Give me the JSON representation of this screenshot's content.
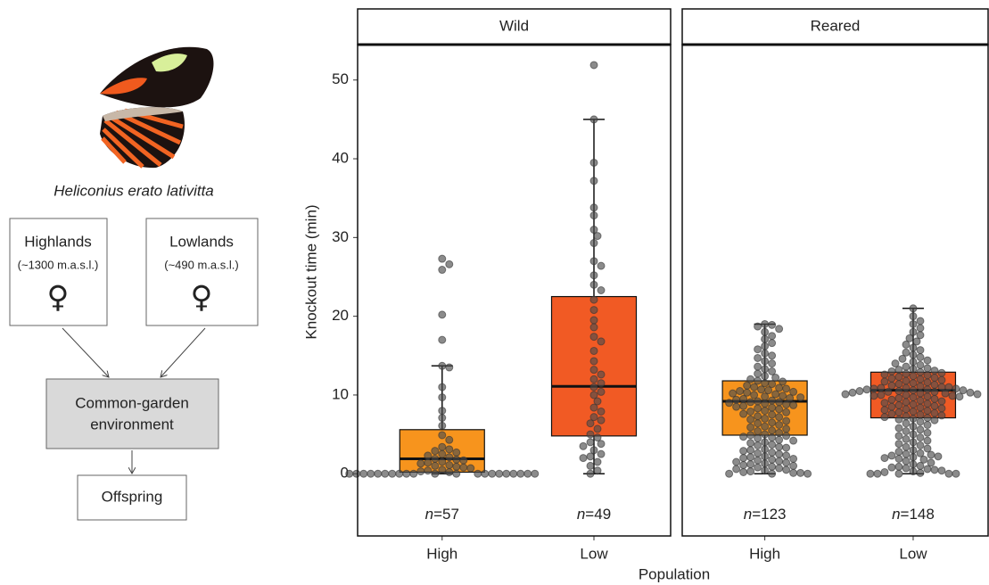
{
  "diagram": {
    "species": "Heliconius erato lativitta",
    "nodes": [
      {
        "label": "Highlands",
        "sublabel": "(~1300 m.a.s.l.)",
        "symbol": "♀"
      },
      {
        "label": "Lowlands",
        "sublabel": "(~490 m.a.s.l.)",
        "symbol": "♀"
      },
      {
        "label": "Common-garden",
        "label2": "environment"
      },
      {
        "label": "Offspring"
      }
    ]
  },
  "chart_data": {
    "type": "box",
    "y_label": "Knockout time (min)",
    "x_label": "Population",
    "ylim": [
      -7.9,
      54.5
    ],
    "yticks": [
      0,
      10,
      20,
      30,
      40,
      50
    ],
    "count_symbol": "n",
    "count_equals": "=",
    "colors": [
      "#f7941d",
      "#f15a24"
    ],
    "point_color": "#4d4d4d",
    "panels": [
      {
        "title": "Wild",
        "categories": [
          "High",
          "Low"
        ],
        "boxes": [
          {
            "min": 0,
            "q1": 0.2,
            "median": 1.9,
            "q3": 5.6,
            "max": 13.7,
            "n": 57,
            "points": [
              27.3,
              26.6,
              25.9,
              20.2,
              17.0,
              13.7,
              13.5,
              11.0,
              9.7,
              8.0,
              7.1,
              6.1,
              4.9,
              4.3,
              3.4,
              3.1,
              2.9,
              2.7,
              2.5,
              2.3,
              2.1,
              1.9,
              1.8,
              1.7,
              1.5,
              1.4,
              1.3,
              1.1,
              1.0,
              0.9,
              0.8,
              0.7,
              0.5,
              0.4,
              0.3,
              0.2,
              0,
              0,
              0,
              0,
              0,
              0,
              0,
              0,
              0,
              0,
              0,
              0,
              0,
              0,
              0,
              0,
              0,
              0,
              0,
              0,
              0
            ]
          },
          {
            "min": 0,
            "q1": 4.8,
            "median": 11.1,
            "q3": 22.5,
            "max": 45,
            "n": 49,
            "points": [
              51.9,
              45,
              39.5,
              37.2,
              33.8,
              32.8,
              31,
              30.2,
              29.3,
              27,
              26.4,
              25.2,
              24,
              23.3,
              22.1,
              20.8,
              19.5,
              18.6,
              17.4,
              16.8,
              15.6,
              14.3,
              13.2,
              12.6,
              12,
              11.5,
              11,
              10.4,
              10,
              9.2,
              8.4,
              7.9,
              7.2,
              6.8,
              6.4,
              5.7,
              5,
              4.6,
              4,
              3.8,
              3.5,
              3,
              2.5,
              2.2,
              2,
              1.5,
              1,
              0.4,
              0
            ]
          }
        ]
      },
      {
        "title": "Reared",
        "categories": [
          "High",
          "Low"
        ],
        "boxes": [
          {
            "min": 0,
            "q1": 4.9,
            "median": 9.2,
            "q3": 11.8,
            "max": 19,
            "n": 123,
            "points": [
              19.0,
              18.9,
              18.7,
              18.4,
              18.0,
              17.5,
              17.1,
              16.6,
              16.2,
              15.8,
              15.3,
              15.0,
              14.7,
              14.3,
              14.0,
              13.6,
              13.3,
              13.0,
              12.7,
              12.4,
              12.2,
              12.0,
              11.8,
              11.7,
              11.5,
              11.4,
              11.2,
              11.0,
              10.9,
              10.8,
              10.7,
              10.6,
              10.5,
              10.4,
              10.3,
              10.2,
              10.1,
              10.0,
              9.9,
              9.8,
              9.7,
              9.6,
              9.5,
              9.4,
              9.3,
              9.2,
              9.1,
              9.1,
              9.0,
              8.9,
              8.8,
              8.7,
              8.6,
              8.5,
              8.4,
              8.3,
              8.2,
              8.0,
              7.9,
              7.8,
              7.6,
              7.5,
              7.3,
              7.2,
              7.0,
              6.9,
              6.7,
              6.5,
              6.4,
              6.2,
              6.0,
              5.9,
              5.7,
              5.5,
              5.4,
              5.2,
              5.0,
              4.9,
              4.8,
              4.7,
              4.6,
              4.5,
              4.3,
              4.2,
              4.0,
              3.9,
              3.7,
              3.6,
              3.4,
              3.3,
              3.1,
              3.0,
              2.9,
              2.7,
              2.6,
              2.5,
              2.3,
              2.2,
              2.1,
              2.0,
              1.9,
              1.8,
              1.7,
              1.6,
              1.5,
              1.4,
              1.3,
              1.2,
              1.1,
              1.0,
              0.9,
              0.8,
              0.7,
              0.6,
              0.5,
              0.4,
              0.3,
              0.2,
              0.1,
              0.1,
              0.0,
              0.0,
              0.0
            ]
          },
          {
            "min": 0,
            "q1": 7.1,
            "median": 10.6,
            "q3": 12.9,
            "max": 21,
            "n": 148,
            "points": [
              21.0,
              20.0,
              19.4,
              19.0,
              18.5,
              18.0,
              17.6,
              17.2,
              16.8,
              16.4,
              16.0,
              15.7,
              15.4,
              15.1,
              14.8,
              14.6,
              14.4,
              14.2,
              14.0,
              13.8,
              13.6,
              13.4,
              13.3,
              13.2,
              13.1,
              13.0,
              12.9,
              12.8,
              12.7,
              12.6,
              12.5,
              12.4,
              12.3,
              12.2,
              12.1,
              12.0,
              11.9,
              11.8,
              11.7,
              11.6,
              11.5,
              11.4,
              11.3,
              11.2,
              11.1,
              11.0,
              11.0,
              10.9,
              10.9,
              10.8,
              10.8,
              10.7,
              10.7,
              10.6,
              10.6,
              10.5,
              10.5,
              10.4,
              10.4,
              10.3,
              10.3,
              10.2,
              10.2,
              10.1,
              10.1,
              10.0,
              10.0,
              9.9,
              9.9,
              9.8,
              9.8,
              9.7,
              9.6,
              9.5,
              9.4,
              9.3,
              9.2,
              9.1,
              9.0,
              8.9,
              8.8,
              8.7,
              8.6,
              8.5,
              8.4,
              8.3,
              8.2,
              8.1,
              8.0,
              7.9,
              7.8,
              7.7,
              7.6,
              7.5,
              7.4,
              7.3,
              7.2,
              7.1,
              7.0,
              6.9,
              6.8,
              6.6,
              6.4,
              6.2,
              6.0,
              5.8,
              5.6,
              5.4,
              5.2,
              5.0,
              4.8,
              4.6,
              4.4,
              4.2,
              4.0,
              3.8,
              3.6,
              3.4,
              3.2,
              3.0,
              2.8,
              2.6,
              2.5,
              2.4,
              2.3,
              2.2,
              2.1,
              2.0,
              1.9,
              1.8,
              1.6,
              1.4,
              1.2,
              1.0,
              0.9,
              0.8,
              0.7,
              0.6,
              0.5,
              0.4,
              0.3,
              0.2,
              0.1,
              0.0,
              0.0,
              0.0,
              0.0,
              0.0
            ]
          }
        ]
      }
    ]
  }
}
